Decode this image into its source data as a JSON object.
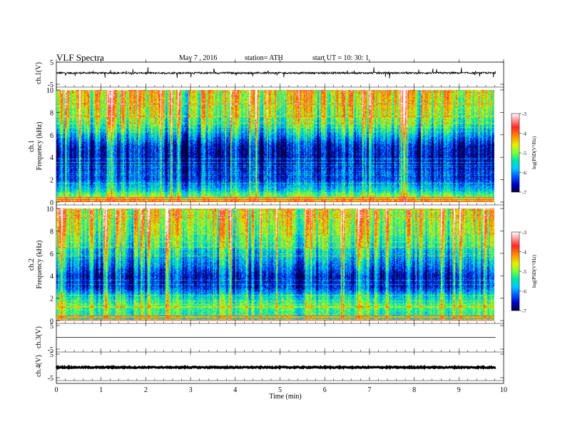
{
  "header": {
    "title": "VLF  Spectra",
    "date": "May 7  , 2016",
    "station": "station= ATH",
    "start": "start  UT  =    10: 30: 1"
  },
  "colorbar": {
    "label": "log(PSD(V²/Hz)",
    "ticks": [
      -3,
      -4,
      -5,
      -6,
      -7
    ],
    "colors": [
      "#ffffff",
      "#ff3030",
      "#ff8c00",
      "#ffe600",
      "#7cff30",
      "#00e6b4",
      "#00b4ff",
      "#0050ff",
      "#0000b0",
      "#000050"
    ]
  },
  "chart_data": [
    {
      "type": "line",
      "panel": "ch1-waveform",
      "ylabel": "ch.1(V)",
      "yticks": [
        "5",
        "-5"
      ],
      "ylim": [
        -5,
        5
      ],
      "xlim": [
        0,
        10
      ],
      "baseline": 0.1,
      "noise_amplitude": 0.4,
      "spike_amplitude": 2.5
    },
    {
      "type": "heatmap",
      "panel": "ch1-spectrogram",
      "ylabel": "ch.1\nFrequency  (kHz)",
      "yticks": [
        "10",
        "8",
        "6",
        "4",
        "2",
        "0"
      ],
      "ylim": [
        0,
        10
      ],
      "xlim": [
        0,
        10
      ],
      "zlim": [
        -7,
        -3
      ],
      "z_unit": "log(PSD(V²/Hz)",
      "profile_freq_khz": [
        0,
        0.5,
        1,
        2,
        3,
        4,
        5,
        6,
        7,
        8,
        9,
        10
      ],
      "profile_logpsd": [
        -4.2,
        -5.0,
        -5.6,
        -6.3,
        -6.4,
        -6.6,
        -6.5,
        -5.8,
        -5.2,
        -4.8,
        -4.6,
        -4.5
      ]
    },
    {
      "type": "heatmap",
      "panel": "ch2-spectrogram",
      "ylabel": "ch.2\nFrequency  (kHz)",
      "yticks": [
        "10",
        "8",
        "6",
        "4",
        "2",
        "0"
      ],
      "ylim": [
        0,
        10
      ],
      "xlim": [
        0,
        10
      ],
      "zlim": [
        -7,
        -3
      ],
      "z_unit": "log(PSD(V²/Hz)",
      "profile_freq_khz": [
        0,
        0.5,
        1,
        2,
        3,
        4,
        5,
        6,
        7,
        8,
        9,
        10
      ],
      "profile_logpsd": [
        -5.2,
        -5.4,
        -5.2,
        -5.5,
        -6.4,
        -6.5,
        -6.0,
        -5.7,
        -5.2,
        -4.9,
        -4.7,
        -4.6
      ]
    },
    {
      "type": "line",
      "panel": "ch3-waveform",
      "ylabel": "ch.3(V)",
      "yticks": [
        "5",
        "-5"
      ],
      "ylim": [
        -5,
        5
      ],
      "xlim": [
        0,
        10
      ],
      "baseline": 0.0,
      "noise_amplitude": 0.0,
      "spike_amplitude": 0.0
    },
    {
      "type": "line",
      "panel": "ch4-waveform",
      "ylabel": "ch.4(V)",
      "yticks": [
        "5",
        "-5"
      ],
      "ylim": [
        -5,
        5
      ],
      "xlim": [
        0,
        10
      ],
      "baseline": -0.6,
      "noise_amplitude": 0.25,
      "spike_amplitude": 0.0
    }
  ],
  "xaxis": {
    "label": "Time  (min)",
    "ticks": [
      "0",
      "1",
      "2",
      "3",
      "4",
      "5",
      "6",
      "7",
      "8",
      "9",
      "10"
    ],
    "data_end": 9.82
  }
}
